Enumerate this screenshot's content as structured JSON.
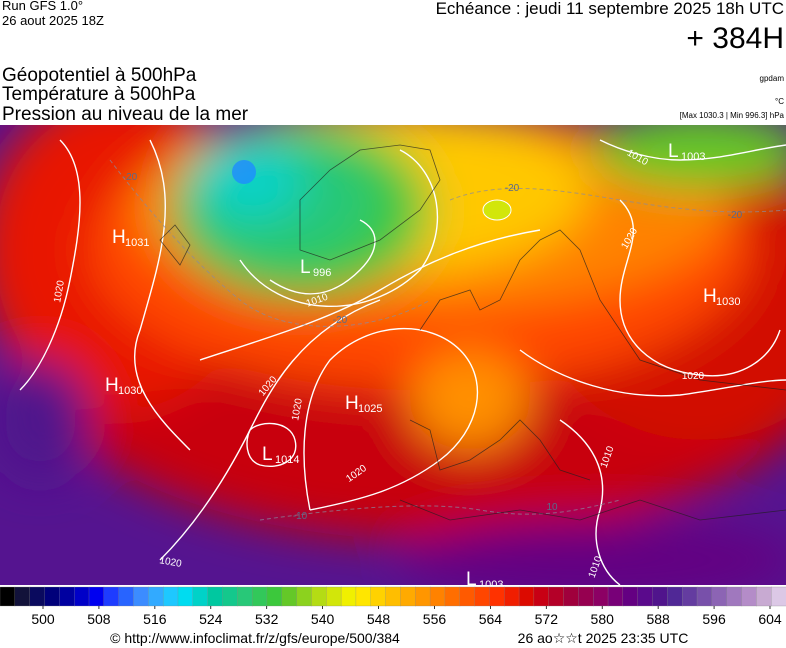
{
  "header": {
    "run": "Run GFS 1.0°",
    "run_date": "26 aout 2025 18Z",
    "valid": "Echéance : jeudi 11 septembre 2025 18h UTC",
    "lead": "+ 384H",
    "layers": [
      "Géopotentiel à 500hPa",
      "Température à 500hPa",
      "Pression au niveau de la mer"
    ],
    "units": [
      "gpdam",
      "°C",
      "[Max 1030.3 | Min 996.3] hPa"
    ]
  },
  "map": {
    "centers": [
      {
        "symbol": "H",
        "value": 1031
      },
      {
        "symbol": "H",
        "value": 1030
      },
      {
        "symbol": "L",
        "value": 996
      },
      {
        "symbol": "L",
        "value": 1003
      },
      {
        "symbol": "H",
        "value": 1030
      },
      {
        "symbol": "H",
        "value": 1025
      },
      {
        "symbol": "L",
        "value": 1014
      },
      {
        "symbol": "L",
        "value": 1003
      }
    ],
    "isobar_labels": [
      1020,
      1010,
      1020,
      1020,
      1020,
      1020,
      1020,
      1020,
      1010,
      1010,
      1010
    ],
    "temperature_labels": [
      -20,
      -20,
      -20,
      -20,
      -10,
      10
    ]
  },
  "colorbar": {
    "colors": [
      "#000000",
      "#12123a",
      "#0a0a5e",
      "#00007a",
      "#0000a0",
      "#0000c8",
      "#0000f0",
      "#1e3cff",
      "#2864ff",
      "#3c8cff",
      "#32aaff",
      "#1ec8ff",
      "#00dcf0",
      "#00d2c8",
      "#00c8a0",
      "#14c88c",
      "#28c878",
      "#32c85a",
      "#3cc83c",
      "#64c828",
      "#8cd21e",
      "#b4dc14",
      "#d2e60a",
      "#f0f000",
      "#ffe600",
      "#ffd200",
      "#ffbe00",
      "#ffaa00",
      "#ff9600",
      "#ff8200",
      "#ff6e00",
      "#ff5a00",
      "#ff4600",
      "#ff3200",
      "#f01e00",
      "#dc0a00",
      "#c80014",
      "#b40028",
      "#a0003c",
      "#960050",
      "#8c0064",
      "#780078",
      "#640082",
      "#5a0a8c",
      "#50148c",
      "#502896",
      "#643ca0",
      "#7850aa",
      "#8c64b4",
      "#a078be",
      "#b48cc8",
      "#c8aad2",
      "#dcc8e6"
    ],
    "ticks": [
      500,
      508,
      516,
      524,
      532,
      540,
      548,
      556,
      564,
      572,
      580,
      588,
      596,
      604
    ]
  },
  "footer": {
    "source": "© http://www.infoclimat.fr/z/gfs/europe/500/384",
    "generated": "26 ao☆☆t 2025 23:35 UTC"
  }
}
